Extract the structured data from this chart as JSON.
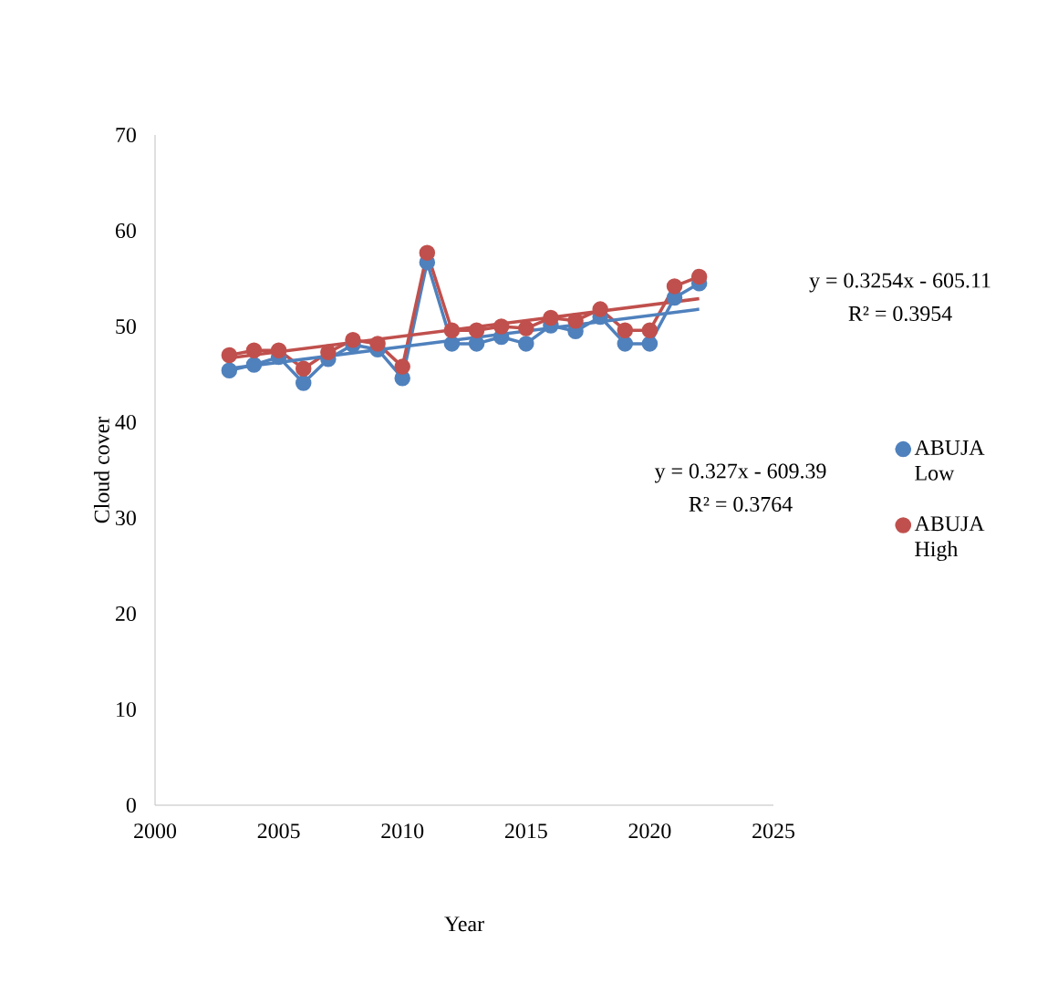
{
  "chart_data": {
    "type": "line",
    "xlabel": "Year",
    "ylabel": "Cloud cover",
    "x": [
      2003,
      2004,
      2005,
      2006,
      2007,
      2008,
      2009,
      2010,
      2011,
      2012,
      2013,
      2014,
      2015,
      2016,
      2017,
      2018,
      2019,
      2020,
      2021,
      2022
    ],
    "series": [
      {
        "name": "ABUJA Low",
        "color": "#4f81bd",
        "values": [
          45.4,
          46.0,
          46.8,
          44.1,
          46.6,
          48.1,
          47.6,
          44.6,
          56.7,
          48.2,
          48.2,
          48.9,
          48.2,
          50.1,
          49.5,
          51.0,
          48.2,
          48.2,
          53.0,
          54.5
        ]
      },
      {
        "name": "ABUJA High",
        "color": "#c0504d",
        "values": [
          47.0,
          47.5,
          47.5,
          45.6,
          47.3,
          48.6,
          48.2,
          45.8,
          57.7,
          49.6,
          49.6,
          50.0,
          49.8,
          50.9,
          50.6,
          51.8,
          49.6,
          49.6,
          54.2,
          55.2
        ]
      },
      {
        "type": "line",
        "marker": "none",
        "color": "#4f81bd",
        "values": [
          45.6,
          null,
          null,
          null,
          null,
          null,
          null,
          null,
          null,
          null,
          null,
          null,
          null,
          null,
          null,
          null,
          null,
          null,
          null,
          51.8
        ]
      },
      {
        "type": "line",
        "marker": "none",
        "color": "#c0504d",
        "values": [
          46.7,
          null,
          null,
          null,
          null,
          null,
          null,
          null,
          null,
          null,
          null,
          null,
          null,
          null,
          null,
          null,
          null,
          null,
          null,
          52.9
        ]
      }
    ],
    "annotations": [
      "y = 0.3254x - 605.11",
      "R² = 0.3954",
      "y = 0.327x - 609.39",
      "R² = 0.3764"
    ],
    "xlim": [
      2000,
      2025
    ],
    "xticks": [
      2000,
      2005,
      2010,
      2015,
      2020,
      2025
    ],
    "ylim": [
      0,
      70
    ],
    "yticks": [
      0,
      10,
      20,
      30,
      40,
      50,
      60,
      70
    ],
    "grid": false,
    "legend": "right",
    "marker": "circle",
    "line_style": "solid"
  }
}
